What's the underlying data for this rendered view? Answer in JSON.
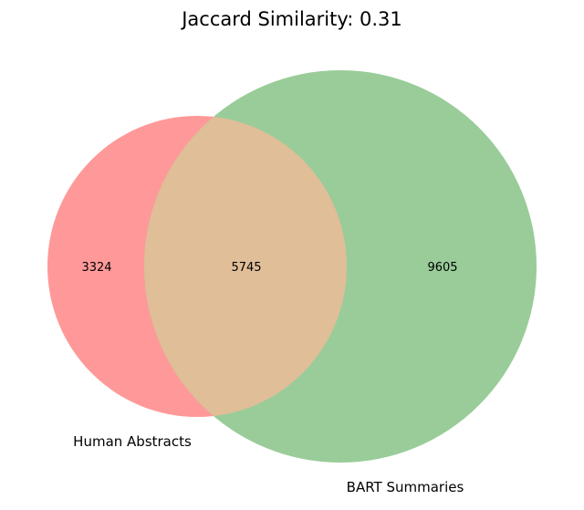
{
  "title": "Jaccard Similarity: 0.31",
  "sets": [
    {
      "name": "Human Abstracts",
      "only_count": "3324",
      "color": "#ff9999"
    },
    {
      "name": "BART Summaries",
      "only_count": "9605",
      "color": "#99cc99"
    }
  ],
  "intersection": {
    "count": "5745",
    "color": "#e0be98"
  }
}
